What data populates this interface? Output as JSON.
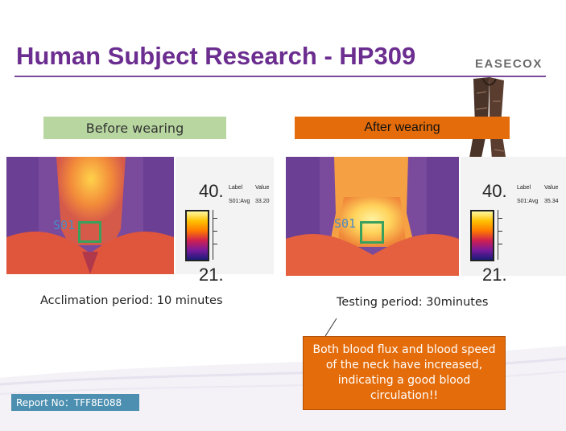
{
  "header": {
    "title": "Human Subject Research - HP309",
    "brand": "EASECOX"
  },
  "panels": {
    "before": {
      "label": "Before wearing",
      "roi_label": "S01",
      "scale_max": "40.",
      "scale_min": "21.",
      "table": {
        "col1": "Label",
        "col2": "Value",
        "row_label": "S01:Avg",
        "row_value": "33.20"
      },
      "caption": "Acclimation period: 10 minutes"
    },
    "after": {
      "label": "After wearing",
      "roi_label": "S01",
      "scale_max": "40.",
      "scale_min": "21.",
      "table": {
        "col1": "Label",
        "col2": "Value",
        "row_label": "S01:Avg",
        "row_value": "35.34"
      },
      "caption": "Testing period: 30minutes"
    }
  },
  "callout": {
    "text": "Both blood flux and blood speed of the neck have increased, indicating a good blood circulation!!"
  },
  "footer": {
    "report": "Report No：TFF8E088"
  },
  "colors": {
    "title": "#6b2d8f",
    "before_label": "#b8d7a0",
    "after_label": "#e46c0a",
    "callout": "#e46c0a",
    "report": "#4d8fb0"
  }
}
